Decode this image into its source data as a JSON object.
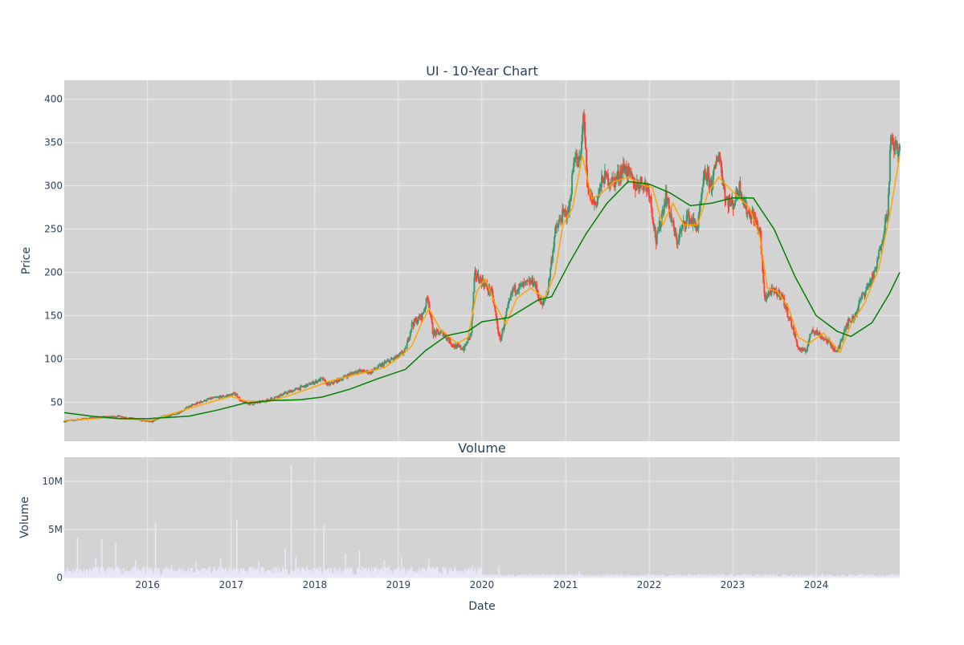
{
  "chart_data": [
    {
      "type": "candlestick",
      "title": "UI - 10-Year Chart",
      "xlabel": "",
      "ylabel": "Price",
      "ylim": [
        5,
        422
      ],
      "yticks": [
        50,
        100,
        150,
        200,
        250,
        300,
        350,
        400
      ],
      "xrange": [
        "2015-01-02",
        "2024-12-31"
      ],
      "grid": true,
      "colors": {
        "plot_bg": "#d3d3d3",
        "grid": "#ebebeb",
        "up": "#3d9970",
        "down": "#ff4136",
        "ma_short": "#ffa500",
        "ma_long": "#008000"
      },
      "series": [
        {
          "points": [
            [
              "2015-01-02",
              28
            ],
            [
              "2015-03-01",
              30
            ],
            [
              "2015-05-01",
              32
            ],
            [
              "2015-07-01",
              33
            ],
            [
              "2015-09-01",
              34
            ],
            [
              "2015-11-01",
              31
            ],
            [
              "2016-01-15",
              27
            ],
            [
              "2016-03-01",
              33
            ],
            [
              "2016-05-01",
              36
            ],
            [
              "2016-07-01",
              45
            ],
            [
              "2016-08-15",
              50
            ],
            [
              "2016-10-01",
              54
            ],
            [
              "2016-12-01",
              57
            ],
            [
              "2017-01-20",
              60
            ],
            [
              "2017-02-15",
              50
            ],
            [
              "2017-04-01",
              48
            ],
            [
              "2017-06-01",
              52
            ],
            [
              "2017-08-01",
              58
            ],
            [
              "2017-10-01",
              64
            ],
            [
              "2017-12-01",
              70
            ],
            [
              "2018-02-01",
              77
            ],
            [
              "2018-03-01",
              70
            ],
            [
              "2018-05-01",
              78
            ],
            [
              "2018-07-01",
              86
            ],
            [
              "2018-09-01",
              85
            ],
            [
              "2018-11-01",
              95
            ],
            [
              "2019-01-01",
              103
            ],
            [
              "2019-02-01",
              110
            ],
            [
              "2019-03-01",
              140
            ],
            [
              "2019-04-15",
              150
            ],
            [
              "2019-05-10",
              172
            ],
            [
              "2019-06-01",
              130
            ],
            [
              "2019-07-15",
              130
            ],
            [
              "2019-09-01",
              115
            ],
            [
              "2019-10-15",
              112
            ],
            [
              "2019-11-15",
              130
            ],
            [
              "2019-12-01",
              198
            ],
            [
              "2020-01-01",
              190
            ],
            [
              "2020-02-15",
              175
            ],
            [
              "2020-03-20",
              120
            ],
            [
              "2020-04-15",
              150
            ],
            [
              "2020-05-15",
              180
            ],
            [
              "2020-07-01",
              185
            ],
            [
              "2020-08-15",
              190
            ],
            [
              "2020-09-20",
              160
            ],
            [
              "2020-10-15",
              180
            ],
            [
              "2020-11-15",
              245
            ],
            [
              "2020-12-15",
              265
            ],
            [
              "2021-01-15",
              270
            ],
            [
              "2021-02-10",
              340
            ],
            [
              "2021-02-25",
              322
            ],
            [
              "2021-03-10",
              338
            ],
            [
              "2021-03-20",
              392
            ],
            [
              "2021-04-05",
              295
            ],
            [
              "2021-05-10",
              278
            ],
            [
              "2021-06-15",
              310
            ],
            [
              "2021-08-01",
              305
            ],
            [
              "2021-09-15",
              322
            ],
            [
              "2021-11-01",
              300
            ],
            [
              "2021-12-01",
              305
            ],
            [
              "2022-01-01",
              295
            ],
            [
              "2022-02-01",
              235
            ],
            [
              "2022-03-15",
              290
            ],
            [
              "2022-05-01",
              235
            ],
            [
              "2022-06-15",
              265
            ],
            [
              "2022-08-01",
              252
            ],
            [
              "2022-09-01",
              315
            ],
            [
              "2022-10-01",
              300
            ],
            [
              "2022-11-01",
              340
            ],
            [
              "2022-12-01",
              285
            ],
            [
              "2023-01-01",
              278
            ],
            [
              "2023-02-01",
              300
            ],
            [
              "2023-03-01",
              272
            ],
            [
              "2023-04-01",
              265
            ],
            [
              "2023-05-01",
              245
            ],
            [
              "2023-05-20",
              170
            ],
            [
              "2023-06-15",
              178
            ],
            [
              "2023-08-01",
              175
            ],
            [
              "2023-09-15",
              140
            ],
            [
              "2023-10-15",
              112
            ],
            [
              "2023-11-15",
              108
            ],
            [
              "2023-12-15",
              135
            ],
            [
              "2024-01-15",
              128
            ],
            [
              "2024-03-01",
              118
            ],
            [
              "2024-04-01",
              107
            ],
            [
              "2024-05-10",
              140
            ],
            [
              "2024-06-15",
              148
            ],
            [
              "2024-07-15",
              170
            ],
            [
              "2024-08-15",
              185
            ],
            [
              "2024-09-15",
              200
            ],
            [
              "2024-10-15",
              240
            ],
            [
              "2024-11-10",
              275
            ],
            [
              "2024-11-20",
              350
            ],
            [
              "2024-12-31",
              340
            ]
          ]
        }
      ],
      "ma_short": [
        [
          "2015-01-02",
          29
        ],
        [
          "2015-07-01",
          32
        ],
        [
          "2016-01-15",
          29
        ],
        [
          "2016-07-01",
          43
        ],
        [
          "2017-01-01",
          57
        ],
        [
          "2017-03-01",
          52
        ],
        [
          "2017-06-01",
          50
        ],
        [
          "2017-09-01",
          57
        ],
        [
          "2018-01-01",
          68
        ],
        [
          "2018-03-01",
          74
        ],
        [
          "2018-07-01",
          82
        ],
        [
          "2018-11-01",
          90
        ],
        [
          "2019-01-15",
          104
        ],
        [
          "2019-03-01",
          115
        ],
        [
          "2019-04-15",
          143
        ],
        [
          "2019-05-15",
          158
        ],
        [
          "2019-07-01",
          135
        ],
        [
          "2019-09-15",
          118
        ],
        [
          "2019-11-01",
          125
        ],
        [
          "2019-12-10",
          178
        ],
        [
          "2020-01-15",
          193
        ],
        [
          "2020-03-01",
          162
        ],
        [
          "2020-04-15",
          140
        ],
        [
          "2020-06-01",
          170
        ],
        [
          "2020-08-01",
          182
        ],
        [
          "2020-10-01",
          170
        ],
        [
          "2020-11-15",
          198
        ],
        [
          "2020-12-20",
          255
        ],
        [
          "2021-02-01",
          275
        ],
        [
          "2021-03-15",
          335
        ],
        [
          "2021-04-25",
          285
        ],
        [
          "2021-06-01",
          290
        ],
        [
          "2021-08-01",
          305
        ],
        [
          "2021-10-01",
          310
        ],
        [
          "2021-12-15",
          300
        ],
        [
          "2022-01-15",
          298
        ],
        [
          "2022-03-01",
          255
        ],
        [
          "2022-04-15",
          280
        ],
        [
          "2022-06-01",
          255
        ],
        [
          "2022-08-01",
          255
        ],
        [
          "2022-09-15",
          292
        ],
        [
          "2022-11-01",
          310
        ],
        [
          "2022-12-15",
          298
        ],
        [
          "2023-02-01",
          285
        ],
        [
          "2023-03-15",
          275
        ],
        [
          "2023-05-01",
          240
        ],
        [
          "2023-06-01",
          182
        ],
        [
          "2023-07-15",
          178
        ],
        [
          "2023-09-01",
          160
        ],
        [
          "2023-10-15",
          125
        ],
        [
          "2023-12-01",
          118
        ],
        [
          "2024-02-01",
          130
        ],
        [
          "2024-04-15",
          108
        ],
        [
          "2024-06-01",
          140
        ],
        [
          "2024-08-01",
          165
        ],
        [
          "2024-10-01",
          205
        ],
        [
          "2024-11-20",
          270
        ],
        [
          "2024-12-31",
          335
        ]
      ],
      "ma_long": [
        [
          "2015-01-02",
          38
        ],
        [
          "2015-05-01",
          34
        ],
        [
          "2015-09-01",
          31
        ],
        [
          "2016-01-01",
          31
        ],
        [
          "2016-07-01",
          34
        ],
        [
          "2016-11-01",
          41
        ],
        [
          "2017-03-01",
          49
        ],
        [
          "2017-07-01",
          52
        ],
        [
          "2017-11-01",
          53
        ],
        [
          "2018-02-01",
          56
        ],
        [
          "2018-06-01",
          65
        ],
        [
          "2018-10-01",
          77
        ],
        [
          "2019-02-01",
          88
        ],
        [
          "2019-05-01",
          110
        ],
        [
          "2019-08-01",
          127
        ],
        [
          "2019-11-01",
          132
        ],
        [
          "2020-01-01",
          143
        ],
        [
          "2020-05-01",
          148
        ],
        [
          "2020-09-01",
          168
        ],
        [
          "2020-11-01",
          172
        ],
        [
          "2021-01-15",
          210
        ],
        [
          "2021-04-01",
          245
        ],
        [
          "2021-07-01",
          280
        ],
        [
          "2021-10-01",
          305
        ],
        [
          "2022-01-01",
          302
        ],
        [
          "2022-04-01",
          292
        ],
        [
          "2022-07-01",
          277
        ],
        [
          "2022-10-01",
          280
        ],
        [
          "2023-01-01",
          286
        ],
        [
          "2023-04-01",
          286
        ],
        [
          "2023-07-01",
          250
        ],
        [
          "2023-10-01",
          195
        ],
        [
          "2024-01-01",
          150
        ],
        [
          "2024-04-01",
          132
        ],
        [
          "2024-06-01",
          126
        ],
        [
          "2024-09-01",
          142
        ],
        [
          "2024-11-15",
          175
        ],
        [
          "2024-12-31",
          200
        ]
      ]
    },
    {
      "type": "bar",
      "title": "Volume",
      "xlabel": "Date",
      "ylabel": "Volume",
      "ylim": [
        0,
        12500000
      ],
      "yticks": [
        0,
        5000000,
        10000000
      ],
      "ytick_labels": [
        "0",
        "5M",
        "10M"
      ],
      "xticks": [
        "2016",
        "2017",
        "2018",
        "2019",
        "2020",
        "2021",
        "2022",
        "2023",
        "2024"
      ],
      "grid": true,
      "colors": {
        "plot_bg": "#d3d3d3",
        "bar": "#e8e8f8"
      },
      "spikes": [
        [
          "2015-03-01",
          4200000
        ],
        [
          "2015-05-20",
          2000000
        ],
        [
          "2015-06-15",
          4000000
        ],
        [
          "2015-08-15",
          3700000
        ],
        [
          "2015-11-10",
          1800000
        ],
        [
          "2016-02-05",
          5700000
        ],
        [
          "2016-04-15",
          1300000
        ],
        [
          "2016-08-01",
          1700000
        ],
        [
          "2016-11-15",
          2000000
        ],
        [
          "2017-01-25",
          6000000
        ],
        [
          "2017-05-01",
          1700000
        ],
        [
          "2017-08-25",
          3000000
        ],
        [
          "2017-09-20",
          11800000
        ],
        [
          "2017-10-10",
          2200000
        ],
        [
          "2018-02-10",
          5500000
        ],
        [
          "2018-05-15",
          2500000
        ],
        [
          "2018-07-15",
          2800000
        ],
        [
          "2018-11-01",
          1800000
        ],
        [
          "2019-01-15",
          2100000
        ],
        [
          "2019-05-15",
          1900000
        ],
        [
          "2019-11-20",
          1300000
        ],
        [
          "2020-03-15",
          1200000
        ],
        [
          "2020-08-01",
          500000
        ],
        [
          "2021-03-01",
          700000
        ],
        [
          "2022-06-01",
          300000
        ],
        [
          "2023-05-01",
          300000
        ],
        [
          "2024-03-01",
          300000
        ]
      ],
      "baseline_level": 450000
    }
  ]
}
